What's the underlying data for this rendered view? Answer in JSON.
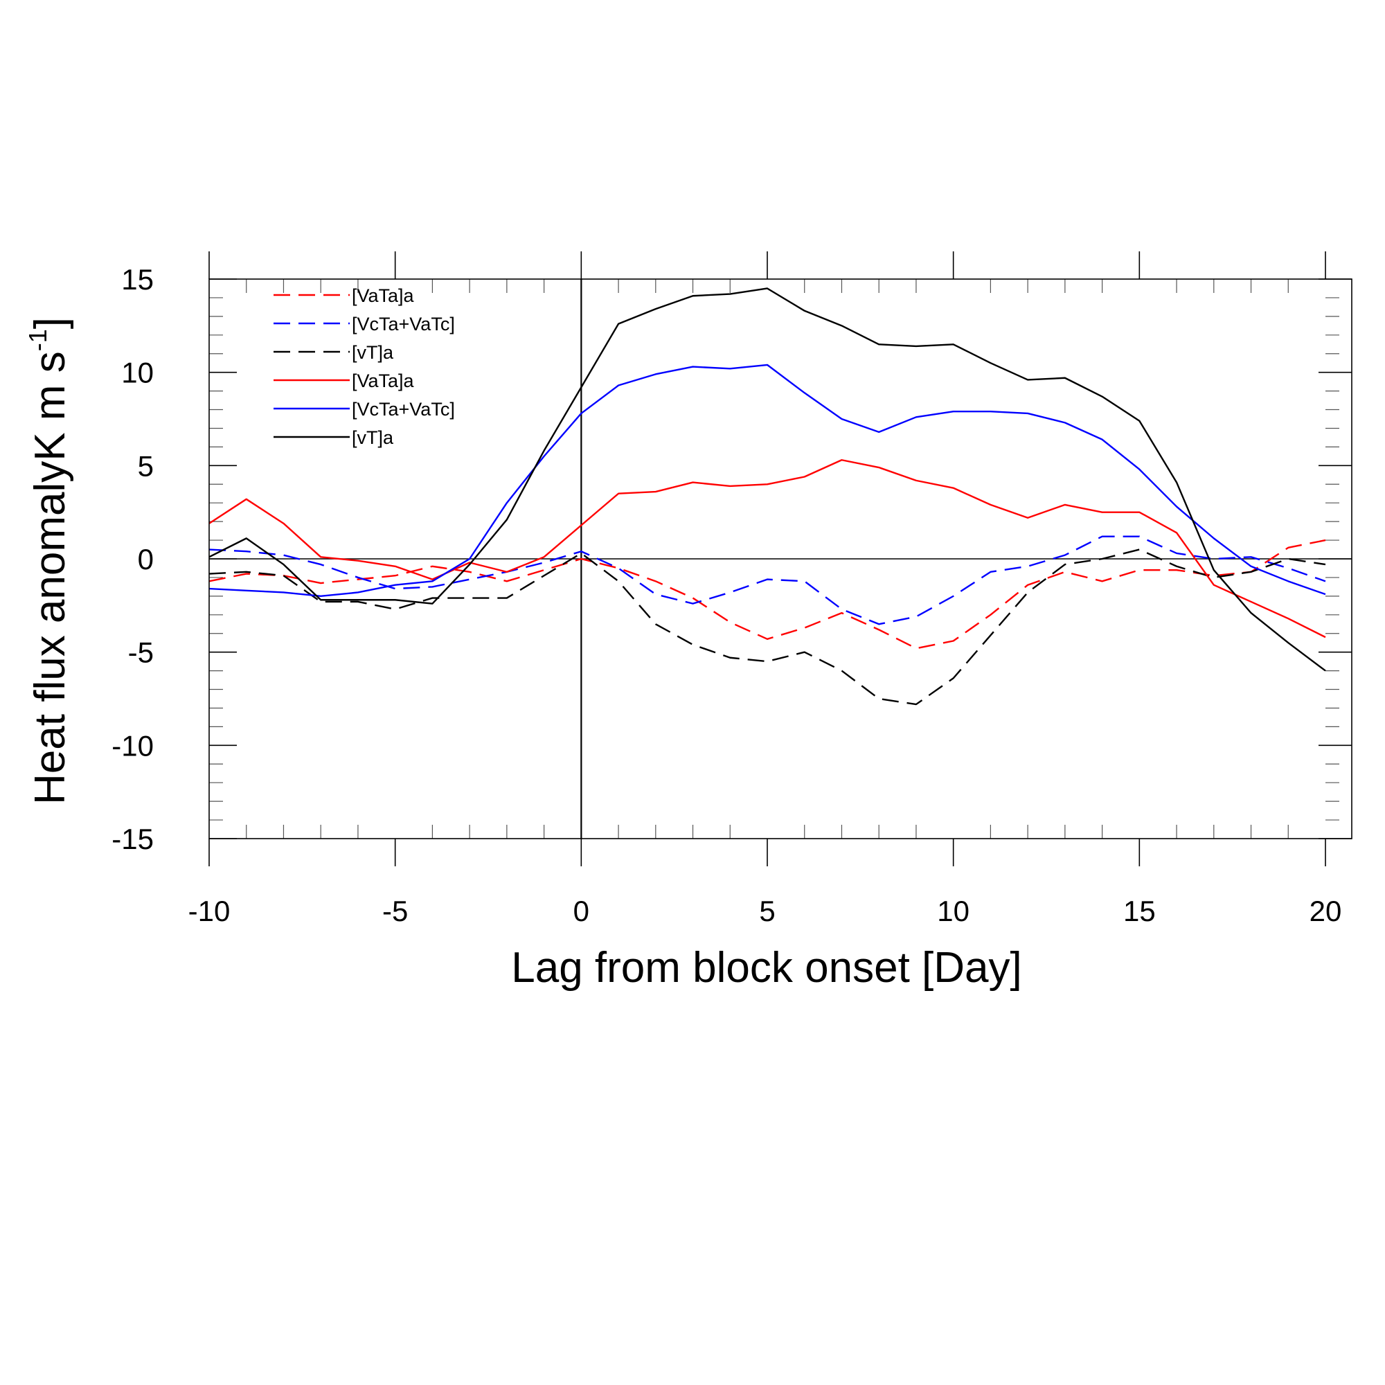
{
  "chart_data": {
    "type": "line",
    "title": "",
    "xlabel": "Lag from block onset [Day]",
    "ylabel": "Heat flux anomalyK m s",
    "ylabel_sup": "-1",
    "ylabel_close": "]",
    "xlim": [
      -10,
      20
    ],
    "ylim": [
      -15,
      15
    ],
    "x_ticks": [
      -10,
      -5,
      0,
      5,
      10,
      15,
      20
    ],
    "x_tick_labels": [
      "-10",
      "-5",
      "0",
      "5",
      "10",
      "15",
      "20"
    ],
    "y_ticks": [
      -15,
      -10,
      -5,
      0,
      5,
      10,
      15
    ],
    "y_tick_labels": [
      "-15",
      "-10",
      "-5",
      "0",
      "5",
      "10",
      "15"
    ],
    "grid": false,
    "reference_lines": {
      "x": 0,
      "y": 0
    },
    "legend_position": "top-left",
    "x": [
      -10,
      -9,
      -8,
      -7,
      -6,
      -5,
      -4,
      -3,
      -2,
      -1,
      0,
      1,
      2,
      3,
      4,
      5,
      6,
      7,
      8,
      9,
      10,
      11,
      12,
      13,
      14,
      15,
      16,
      17,
      18,
      19,
      20
    ],
    "series": [
      {
        "name": "[VaTa]a",
        "color": "#ff0000",
        "dash": "dashed",
        "values": [
          -1.2,
          -0.8,
          -0.9,
          -1.3,
          -1.1,
          -0.9,
          -0.4,
          -0.7,
          -1.2,
          -0.6,
          0.0,
          -0.5,
          -1.2,
          -2.1,
          -3.4,
          -4.3,
          -3.7,
          -2.9,
          -3.8,
          -4.8,
          -4.4,
          -3.0,
          -1.4,
          -0.7,
          -1.2,
          -0.6,
          -0.6,
          -0.9,
          -0.7,
          0.6,
          1.0
        ]
      },
      {
        "name": "[VcTa+VaTc]",
        "color": "#0000ff",
        "dash": "dashed",
        "values": [
          0.5,
          0.4,
          0.2,
          -0.3,
          -1.0,
          -1.6,
          -1.5,
          -1.1,
          -0.7,
          -0.2,
          0.4,
          -0.5,
          -1.9,
          -2.4,
          -1.8,
          -1.1,
          -1.2,
          -2.7,
          -3.5,
          -3.1,
          -2.0,
          -0.7,
          -0.4,
          0.2,
          1.2,
          1.2,
          0.3,
          0.0,
          0.1,
          -0.5,
          -1.2
        ]
      },
      {
        "name": "[vT]a",
        "color": "#000000",
        "dash": "dashed",
        "values": [
          -0.8,
          -0.7,
          -0.9,
          -2.3,
          -2.3,
          -2.7,
          -2.1,
          -2.1,
          -2.1,
          -0.9,
          0.3,
          -1.2,
          -3.5,
          -4.6,
          -5.3,
          -5.5,
          -5.0,
          -6.0,
          -7.5,
          -7.8,
          -6.4,
          -4.1,
          -1.8,
          -0.3,
          0.0,
          0.5,
          -0.4,
          -1.0,
          -0.7,
          0.0,
          -0.3
        ]
      },
      {
        "name": "[VaTa]a",
        "color": "#ff0000",
        "dash": "solid",
        "values": [
          1.9,
          3.2,
          1.9,
          0.1,
          -0.1,
          -0.4,
          -1.1,
          -0.2,
          -0.7,
          0.1,
          1.8,
          3.5,
          3.6,
          4.1,
          3.9,
          4.0,
          4.4,
          5.3,
          4.9,
          4.2,
          3.8,
          2.9,
          2.2,
          2.9,
          2.5,
          2.5,
          1.4,
          -1.4,
          -2.3,
          -3.2,
          -4.2
        ]
      },
      {
        "name": "[VcTa+VaTc]",
        "color": "#0000ff",
        "dash": "solid",
        "values": [
          -1.6,
          -1.7,
          -1.8,
          -2.0,
          -1.8,
          -1.4,
          -1.2,
          0.0,
          3.0,
          5.5,
          7.8,
          9.3,
          9.9,
          10.3,
          10.2,
          10.4,
          8.9,
          7.5,
          6.8,
          7.6,
          7.9,
          7.9,
          7.8,
          7.3,
          6.4,
          4.8,
          2.8,
          1.1,
          -0.4,
          -1.2,
          -1.9
        ]
      },
      {
        "name": "[vT]a",
        "color": "#000000",
        "dash": "solid",
        "values": [
          0.1,
          1.1,
          -0.3,
          -2.2,
          -2.2,
          -2.2,
          -2.4,
          -0.3,
          2.1,
          5.8,
          9.2,
          12.6,
          13.4,
          14.1,
          14.2,
          14.5,
          13.3,
          12.5,
          11.5,
          11.4,
          11.5,
          10.5,
          9.6,
          9.7,
          8.7,
          7.4,
          4.1,
          -0.6,
          -2.9,
          -4.5,
          -6.0
        ]
      }
    ]
  }
}
